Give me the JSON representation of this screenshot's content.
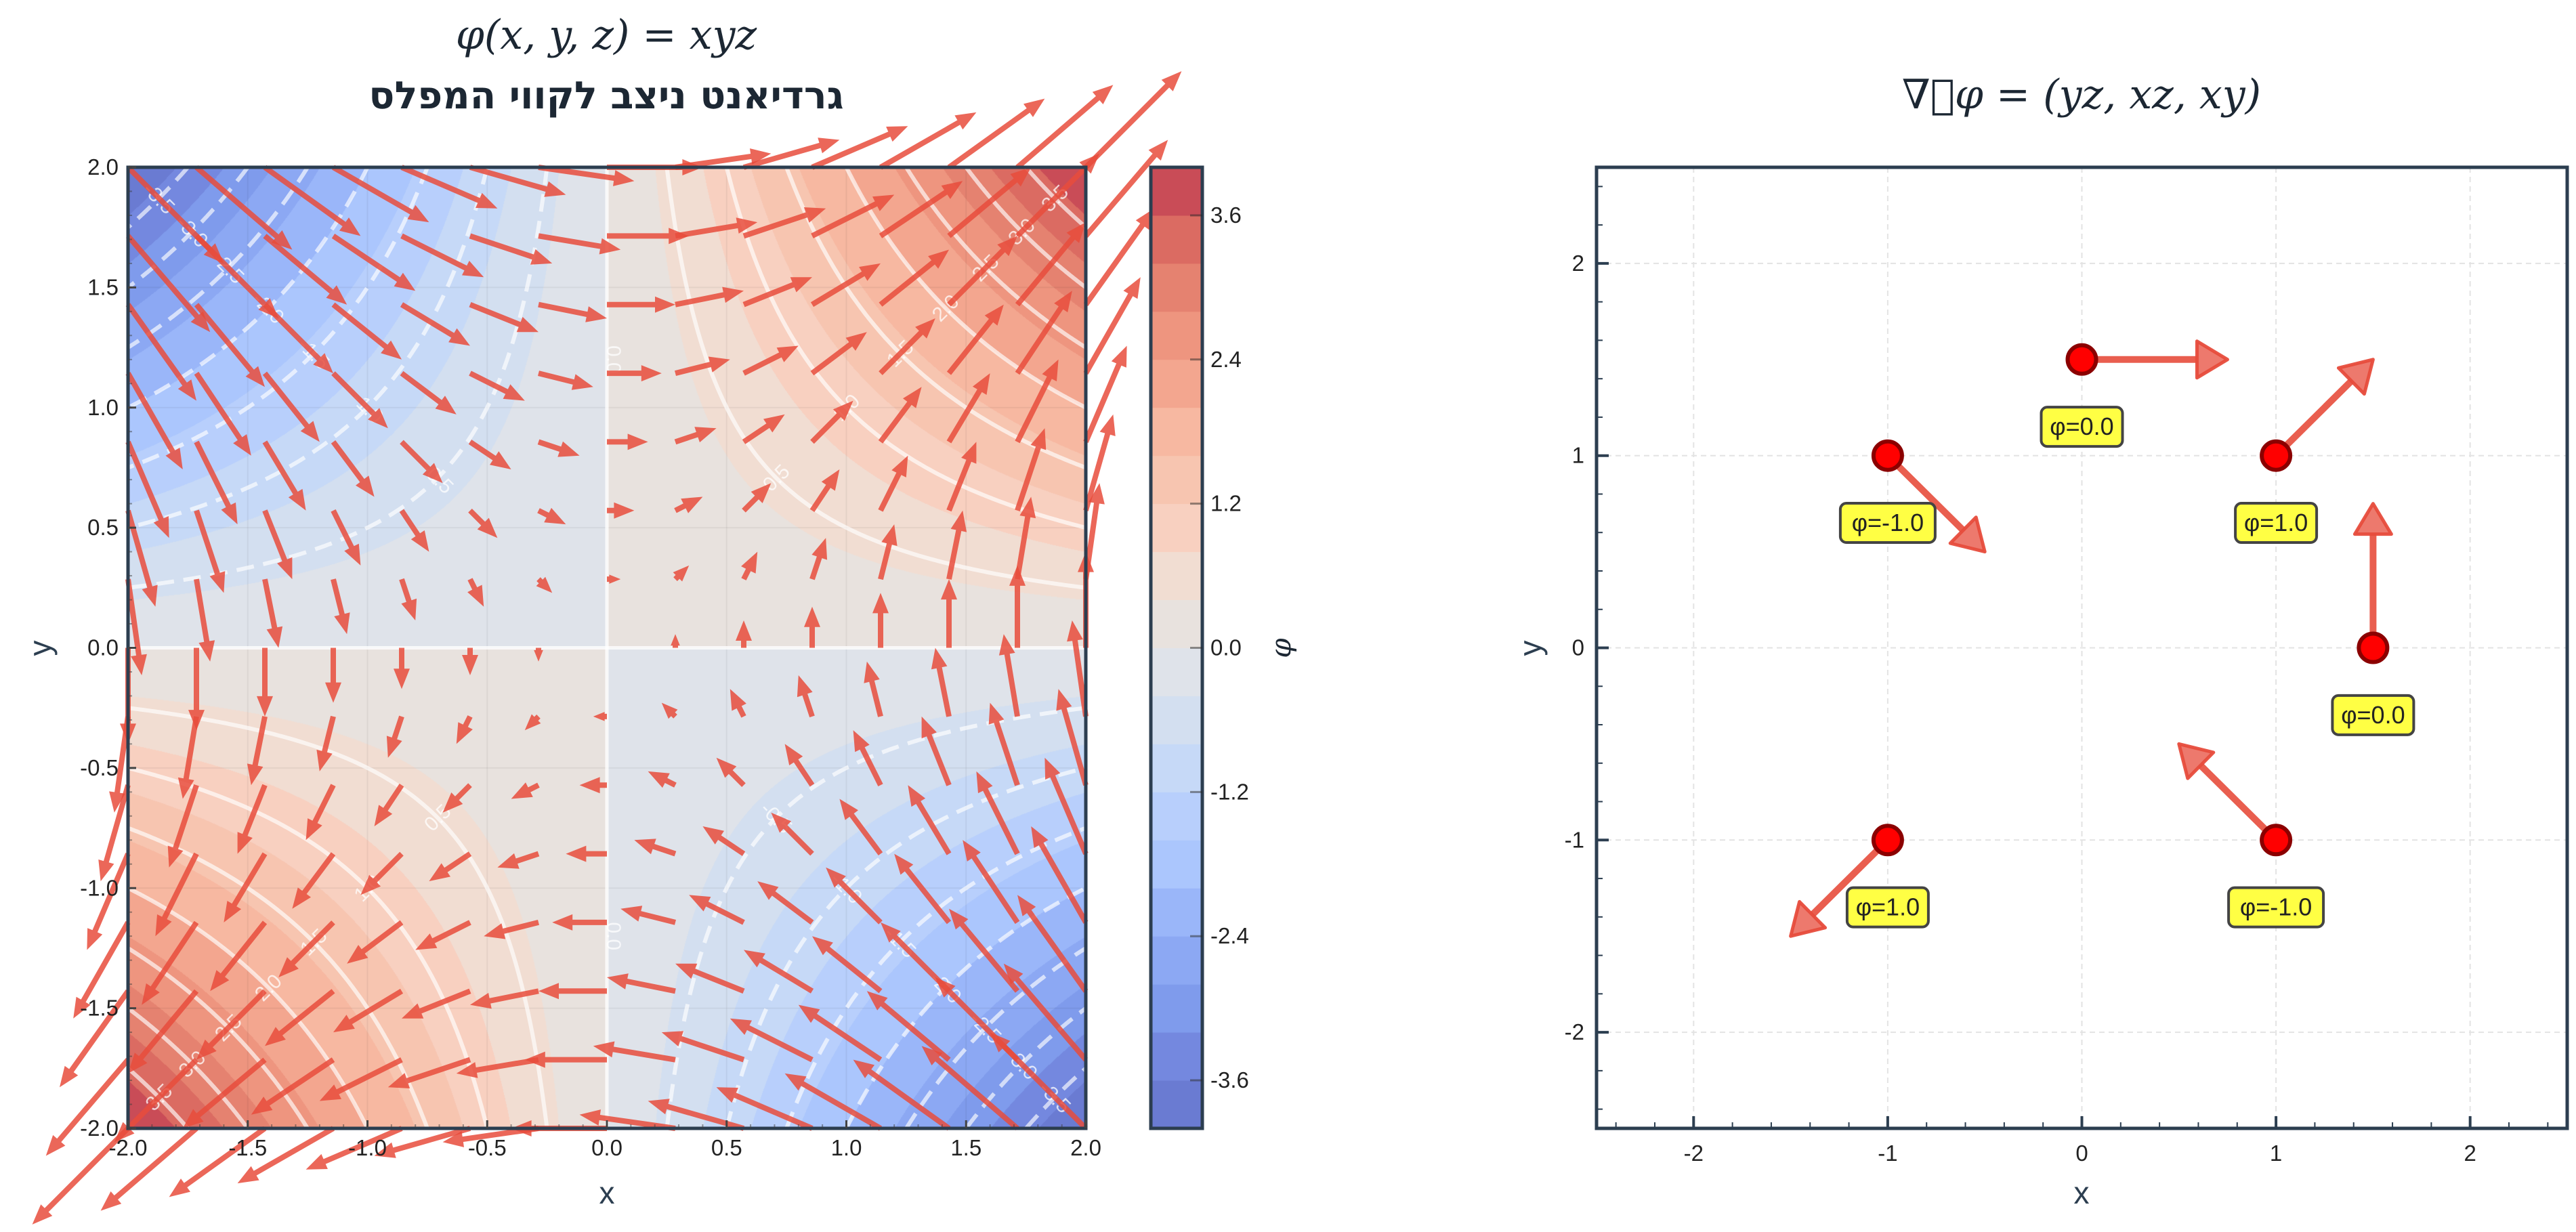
{
  "chart_data": [
    {
      "type": "heatmap",
      "title": "φ(x, y, z) = xyz",
      "subtitle": "גרדיאנט ניצב לקווי המפלס",
      "xlabel": "x",
      "ylabel": "y",
      "xlim": [
        -2,
        2
      ],
      "ylim": [
        -2,
        2
      ],
      "function": "phi = x*y*z, z = 1",
      "xticks": [
        "-2.0",
        "-1.5",
        "-1.0",
        "-0.5",
        "0.0",
        "0.5",
        "1.0",
        "1.5",
        "2.0"
      ],
      "yticks": [
        "-2.0",
        "-1.5",
        "-1.0",
        "-0.5",
        "0.0",
        "0.5",
        "1.0",
        "1.5",
        "2.0"
      ],
      "colormap": "coolwarm",
      "filled_levels": {
        "min": -4,
        "max": 4,
        "step": 0.4
      },
      "band_colors": [
        "#6a7bd2",
        "#7488df",
        "#7f9bec",
        "#8ca8f3",
        "#9ab6f9",
        "#abc6fd",
        "#b8cffc",
        "#c6d9f7",
        "#d3dff0",
        "#dfe3ea",
        "#e8e2de",
        "#f1ddd2",
        "#f8d0c0",
        "#f7c5b0",
        "#f7b8a1",
        "#f3a68f",
        "#ee957f",
        "#e58270",
        "#db6b62",
        "#c94c57"
      ],
      "contour_lines": {
        "levels": [
          -3.5,
          -3.0,
          -2.5,
          -2.0,
          -1.5,
          -1.0,
          -0.5,
          0.0,
          0.5,
          1.0,
          1.5,
          2.0,
          2.5,
          3.0,
          3.5
        ],
        "labels": [
          "-3.5",
          "-3.0",
          "-2.5",
          "-2.0",
          "-1.5",
          "-1.0",
          "-0.5",
          "0.0",
          "0.5",
          "1.0",
          "1.5",
          "2.0",
          "2.5",
          "3.0",
          "3.5"
        ],
        "color": "#ffffff",
        "negative_style": "dashed"
      },
      "quiver": {
        "field": "(yz, xz) with z = 1",
        "grid": 15,
        "range": [
          -2,
          2
        ],
        "color": "#e74c3c"
      },
      "colorbar": {
        "label": "φ",
        "ticks": [
          "-3.6",
          "-2.4",
          "-1.2",
          "0.0",
          "1.2",
          "2.4",
          "3.6"
        ],
        "tick_values": [
          -3.6,
          -2.4,
          -1.2,
          0,
          1.2,
          2.4,
          3.6
        ]
      }
    },
    {
      "type": "scatter",
      "title": "∇⃗φ = (yz, xz, xy)",
      "xlabel": "x",
      "ylabel": "y",
      "xlim": [
        -2.5,
        2.5
      ],
      "ylim": [
        -2.5,
        2.5
      ],
      "grid": true,
      "xticks": [
        "-2",
        "-1",
        "0",
        "1",
        "2"
      ],
      "yticks": [
        "-2",
        "-1",
        "0",
        "1",
        "2"
      ],
      "points": [
        {
          "x": 0,
          "y": 1.5,
          "u": 1.5,
          "v": 0,
          "label": "φ=0.0"
        },
        {
          "x": 1,
          "y": 1,
          "u": 1,
          "v": 1,
          "label": "φ=1.0"
        },
        {
          "x": -1,
          "y": 1,
          "u": 1,
          "v": -1,
          "label": "φ=-1.0"
        },
        {
          "x": 1.5,
          "y": 0,
          "u": 0,
          "v": 1.5,
          "label": "φ=0.0"
        },
        {
          "x": 1,
          "y": -1,
          "u": -1,
          "v": 1,
          "label": "φ=-1.0"
        },
        {
          "x": -1,
          "y": -1,
          "u": -1,
          "v": -1,
          "label": "φ=1.0"
        }
      ],
      "point_color": "#ff0000",
      "arrow_color": "#e74c3c",
      "label_box_color": "#ffff44"
    }
  ]
}
